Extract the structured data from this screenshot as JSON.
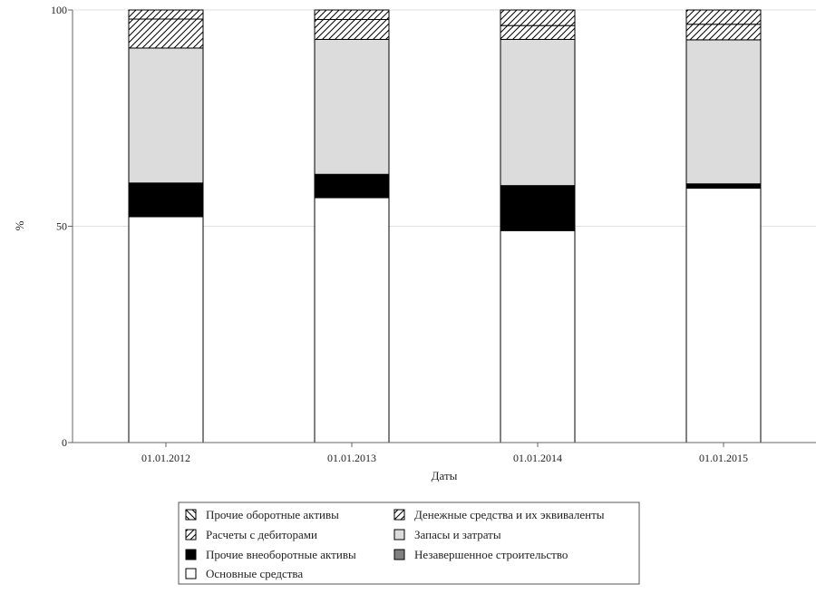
{
  "chart_data": {
    "type": "bar",
    "stacked": true,
    "percent": true,
    "title": "",
    "xlabel": "Даты",
    "ylabel": "%",
    "ylim": [
      0,
      100
    ],
    "yticks": [
      0,
      50,
      100
    ],
    "grid": true,
    "legend_position": "bottom",
    "categories": [
      "01.01.2012",
      "01.01.2013",
      "01.01.2014",
      "01.01.2015"
    ],
    "series": [
      {
        "name": "Основные средства",
        "fill": "white",
        "values": [
          52.2,
          56.6,
          49.0,
          58.8
        ]
      },
      {
        "name": "Незавершенное строительство",
        "fill": "gray",
        "values": [
          0,
          0,
          0,
          0
        ]
      },
      {
        "name": "Прочие внеоборотные активы",
        "fill": "black",
        "values": [
          7.8,
          5.4,
          10.4,
          1.0
        ]
      },
      {
        "name": "Запасы и затраты",
        "fill": "lightgray",
        "values": [
          31.2,
          31.2,
          33.8,
          33.3
        ]
      },
      {
        "name": "Расчеты с дебиторами",
        "fill": "hatch-fwd",
        "values": [
          6.7,
          4.6,
          3.2,
          3.6
        ]
      },
      {
        "name": "Денежные средства и их эквиваленты",
        "fill": "hatch-fwd",
        "values": [
          2.1,
          2.2,
          3.6,
          3.3
        ]
      },
      {
        "name": "Прочие оборотные активы",
        "fill": "hatch-back",
        "values": [
          0,
          0,
          0,
          0
        ]
      }
    ],
    "legend_order": [
      6,
      5,
      4,
      3,
      2,
      1,
      0
    ]
  }
}
